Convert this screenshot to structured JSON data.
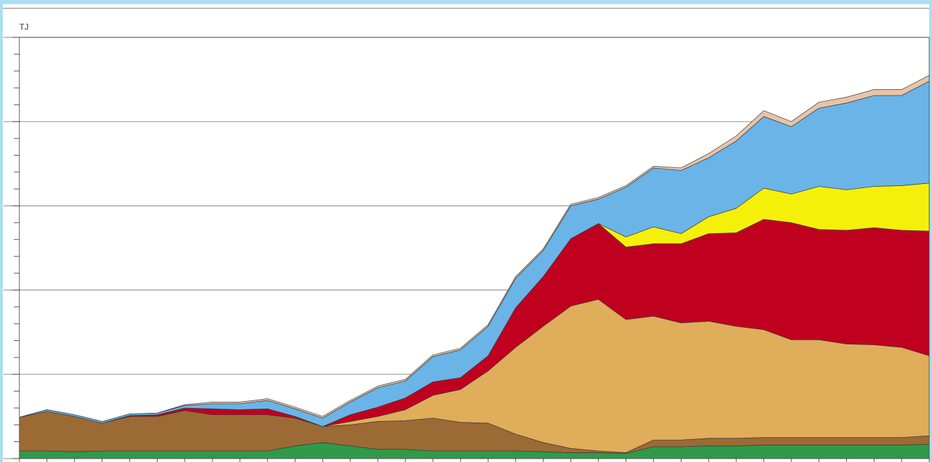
{
  "chart_data": {
    "type": "stacked_area",
    "y_label": "TJ",
    "categories": [
      null,
      null,
      null,
      null,
      null,
      null,
      null,
      null,
      null,
      null,
      null,
      null,
      null,
      null,
      null,
      null,
      null,
      null,
      null,
      null,
      null,
      null,
      null,
      null,
      null,
      null,
      null,
      null,
      null,
      null,
      null,
      null,
      null,
      null
    ],
    "ylim": [
      0,
      5
    ],
    "yticks": [
      0,
      1,
      2,
      3,
      4,
      5
    ],
    "minor_yticks": [
      0.2,
      0.4,
      0.6,
      0.8,
      1.2,
      1.4,
      1.6,
      1.8,
      2.2,
      2.4,
      2.6,
      2.8,
      3.2,
      3.4,
      3.6,
      3.8,
      4.2,
      4.4,
      4.6,
      4.8
    ],
    "grid": true,
    "series": [
      {
        "color": "#2e9a4a",
        "values": [
          0.09,
          0.09,
          0.08,
          0.09,
          0.09,
          0.09,
          0.09,
          0.09,
          0.09,
          0.09,
          0.15,
          0.19,
          0.15,
          0.11,
          0.11,
          0.09,
          0.09,
          0.09,
          0.09,
          0.08,
          0.07,
          0.07,
          0.06,
          0.14,
          0.14,
          0.15,
          0.15,
          0.16,
          0.16,
          0.16,
          0.16,
          0.16,
          0.16,
          0.17
        ]
      },
      {
        "color": "#9c6a35",
        "values": [
          0.4,
          0.47,
          0.42,
          0.33,
          0.41,
          0.41,
          0.48,
          0.43,
          0.43,
          0.43,
          0.33,
          0.19,
          0.25,
          0.33,
          0.34,
          0.39,
          0.34,
          0.33,
          0.2,
          0.11,
          0.05,
          0.02,
          0.01,
          0.08,
          0.08,
          0.09,
          0.09,
          0.09,
          0.09,
          0.09,
          0.09,
          0.09,
          0.09,
          0.1
        ]
      },
      {
        "color": "#e0ad5b",
        "values": [
          0,
          0,
          0,
          0,
          0,
          0,
          0,
          0,
          0,
          0,
          0,
          0,
          0.04,
          0.06,
          0.13,
          0.27,
          0.39,
          0.62,
          1.03,
          1.38,
          1.69,
          1.8,
          1.58,
          1.47,
          1.39,
          1.39,
          1.33,
          1.28,
          1.16,
          1.16,
          1.11,
          1.1,
          1.07,
          0.95
        ]
      },
      {
        "color": "#c0001f",
        "values": [
          0,
          0,
          0,
          0,
          0.01,
          0.02,
          0.03,
          0.07,
          0.06,
          0.07,
          0.02,
          0,
          0.08,
          0.11,
          0.14,
          0.16,
          0.14,
          0.18,
          0.47,
          0.59,
          0.8,
          0.9,
          0.86,
          0.86,
          0.94,
          1.04,
          1.11,
          1.31,
          1.39,
          1.31,
          1.35,
          1.39,
          1.39,
          1.48
        ]
      },
      {
        "color": "#f5f00a",
        "values": [
          0,
          0,
          0,
          0,
          0,
          0,
          0,
          0,
          0,
          0,
          0,
          0,
          0,
          0,
          0,
          0,
          0,
          0,
          0,
          0,
          0,
          0,
          0.12,
          0.2,
          0.12,
          0.2,
          0.29,
          0.37,
          0.34,
          0.51,
          0.48,
          0.49,
          0.53,
          0.57
        ]
      },
      {
        "color": "#6ab4e8",
        "values": [
          0,
          0.02,
          0.02,
          0.02,
          0.02,
          0.02,
          0.03,
          0.06,
          0.07,
          0.1,
          0.09,
          0.1,
          0.15,
          0.23,
          0.2,
          0.3,
          0.33,
          0.35,
          0.35,
          0.31,
          0.39,
          0.29,
          0.59,
          0.7,
          0.75,
          0.7,
          0.8,
          0.85,
          0.8,
          0.93,
          1.03,
          1.08,
          1.07,
          1.21
        ]
      },
      {
        "color": "#e8c4a8",
        "values": [
          0,
          0,
          0,
          0,
          0,
          0,
          0.01,
          0.02,
          0.02,
          0.02,
          0.02,
          0.02,
          0.02,
          0.02,
          0.02,
          0.02,
          0.02,
          0.02,
          0.02,
          0.02,
          0.02,
          0.02,
          0.02,
          0.02,
          0.03,
          0.05,
          0.06,
          0.07,
          0.06,
          0.07,
          0.07,
          0.07,
          0.07,
          0.07
        ]
      }
    ]
  }
}
